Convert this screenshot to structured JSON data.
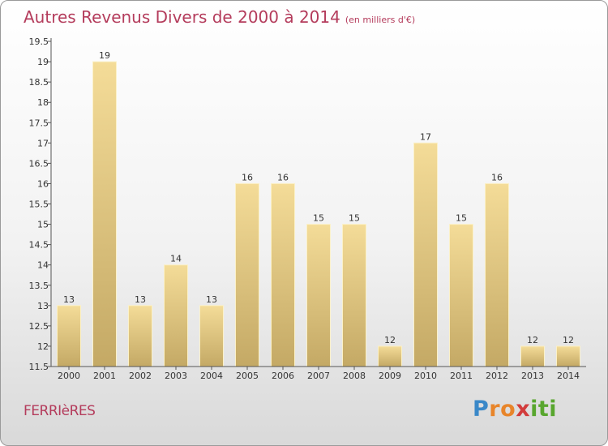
{
  "header": {
    "title": "Autres Revenus Divers de 2000 à 2014",
    "unit": "(en milliers d'€)"
  },
  "footer": {
    "place": "FERRIèRES",
    "brand": "Proxiti",
    "brand_letters": [
      {
        "ch": "P",
        "color": "#3a88c8"
      },
      {
        "ch": "r",
        "color": "#e8852a"
      },
      {
        "ch": "o",
        "color": "#e8852a"
      },
      {
        "ch": "x",
        "color": "#d23c3c"
      },
      {
        "ch": "i",
        "color": "#58a62e"
      },
      {
        "ch": "t",
        "color": "#58a62e"
      },
      {
        "ch": "i",
        "color": "#58a62e"
      }
    ]
  },
  "colors": {
    "bar_light": "#f4dc98",
    "bar_dark": "#c4a965",
    "axis": "#555555",
    "title": "#b43c5c"
  },
  "chart_data": {
    "type": "bar",
    "categories": [
      "2000",
      "2001",
      "2002",
      "2003",
      "2004",
      "2005",
      "2006",
      "2007",
      "2008",
      "2009",
      "2010",
      "2011",
      "2012",
      "2013",
      "2014"
    ],
    "values": [
      13,
      19,
      13,
      14,
      13,
      16,
      16,
      15,
      15,
      12,
      17,
      15,
      16,
      12,
      12
    ],
    "data_labels": [
      "13",
      "19",
      "13",
      "14",
      "13",
      "16",
      "16",
      "15",
      "15",
      "12",
      "17",
      "15",
      "16",
      "12",
      "12"
    ],
    "ylim": [
      11.5,
      19.5
    ],
    "yticks": [
      11.5,
      12,
      12.5,
      13,
      13.5,
      14,
      14.5,
      15,
      15.5,
      16,
      16.5,
      17,
      17.5,
      18,
      18.5,
      19,
      19.5
    ],
    "ytick_labels": [
      "11.5",
      "12",
      "12.5",
      "13",
      "13.5",
      "14",
      "14.5",
      "15",
      "15.5",
      "16",
      "16.5",
      "17",
      "17.5",
      "18",
      "18.5",
      "19",
      "19.5"
    ],
    "title": "Autres Revenus Divers de 2000 à 2014",
    "xlabel": "",
    "ylabel": "",
    "grid": false,
    "legend": "none"
  }
}
